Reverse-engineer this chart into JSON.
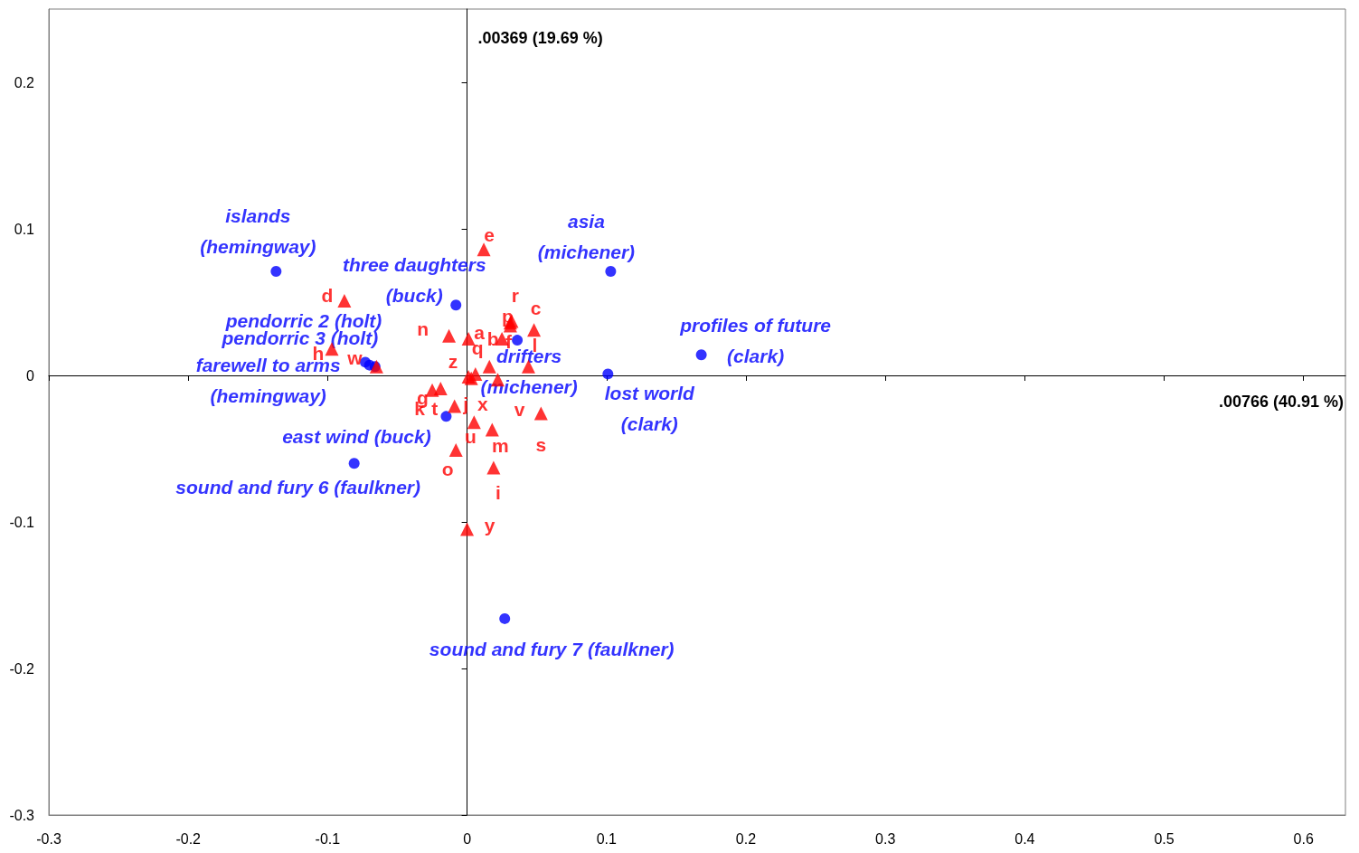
{
  "chart_data": {
    "type": "scatter",
    "xlabel": ".00766 (40.91 %)",
    "ylabel": ".00369 (19.69 %)",
    "xlim": [
      -0.3,
      0.63
    ],
    "ylim": [
      -0.3,
      0.25
    ],
    "xticks": [
      -0.3,
      -0.2,
      -0.1,
      0,
      0.1,
      0.2,
      0.3,
      0.4,
      0.5,
      0.6
    ],
    "yticks": [
      -0.3,
      -0.2,
      -0.1,
      0,
      0.1,
      0.2
    ],
    "series": [
      {
        "color": "#0000ff",
        "marker": "circle",
        "x": [
          -0.137,
          -0.008,
          0.103,
          0.036,
          0.168,
          0.101,
          -0.073,
          -0.066,
          -0.07,
          -0.015,
          -0.081,
          0.027
        ],
        "values": [
          0.071,
          0.048,
          0.071,
          0.024,
          0.014,
          0.001,
          0.009,
          0.006,
          0.007,
          -0.028,
          -0.06,
          -0.166
        ],
        "value_labels": [
          "islands\n(hemingway)",
          "three daughters\n(buck)",
          "asia\n(michener)",
          "drifters\n(michener)",
          "profiles of future\n(clark)",
          "lost world\n(clark)",
          "pendorric 2 (holt)",
          "pendorric 3 (holt)",
          "farewell to arms\n(hemingway)",
          "east wind (buck)",
          "sound and fury 6 (faulkner)",
          "sound and fury 7 (faulkner)"
        ]
      },
      {
        "color": "#ff0000",
        "marker": "triangle",
        "x": [
          0.001,
          0.025,
          0.048,
          -0.088,
          0.012,
          0.031,
          -0.019,
          -0.097,
          0.019,
          0.003,
          -0.025,
          0.044,
          0.018,
          -0.013,
          -0.008,
          0.031,
          0.016,
          0.032,
          0.053,
          -0.009,
          0.005,
          0.022,
          -0.065,
          0.006,
          0.0,
          0.001
        ],
        "values": [
          0.025,
          0.025,
          0.031,
          0.051,
          0.086,
          0.034,
          -0.009,
          0.018,
          -0.063,
          -0.002,
          -0.01,
          0.006,
          -0.037,
          0.027,
          -0.051,
          0.036,
          0.006,
          0.037,
          -0.026,
          -0.021,
          -0.032,
          -0.003,
          0.006,
          0.001,
          -0.105,
          -0.001
        ],
        "value_labels": [
          "a",
          "b",
          "c",
          "d",
          "e",
          "f",
          "g",
          "h",
          "i",
          "j",
          "k",
          "l",
          "m",
          "n",
          "o",
          "p",
          "q",
          "r",
          "s",
          "t",
          "u",
          "v",
          "w",
          "x",
          "y",
          "z"
        ]
      }
    ]
  }
}
